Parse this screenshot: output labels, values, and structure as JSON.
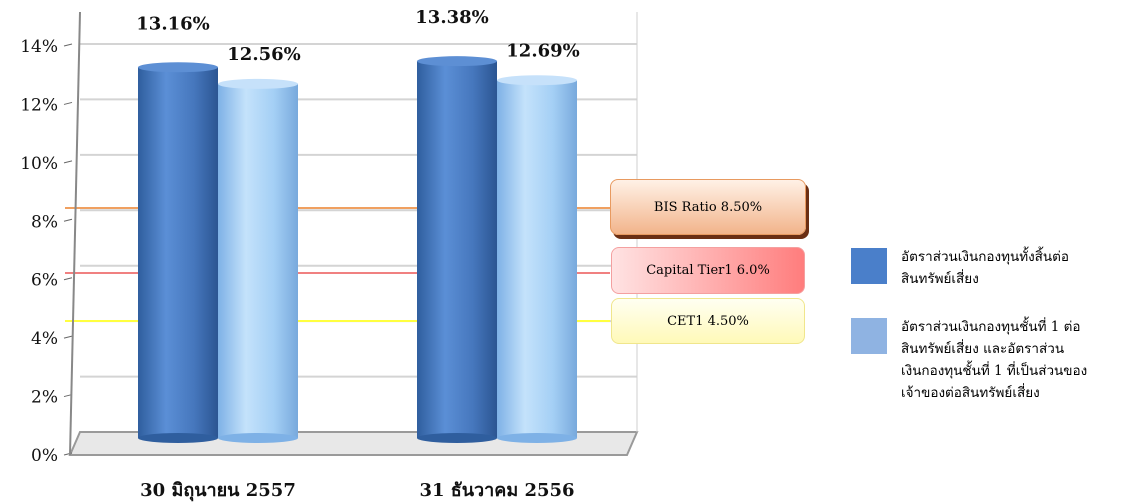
{
  "chart_data": {
    "type": "bar",
    "categories": [
      "30 มิถุนายน 2557",
      "31 ธันวาคม 2556"
    ],
    "series": [
      {
        "name": "อัตราส่วนเงินกองทุนทั้งสิ้นต่อ สินทรัพย์เสี่ยง",
        "values": [
          13.16,
          13.38
        ],
        "labels": [
          "13.16%",
          "13.38%"
        ],
        "color": "#4a7fca"
      },
      {
        "name": "อัตราส่วนเงินกองทุนชั้นที่ 1 ต่อ สินทรัพย์เสี่ยง และอัตราส่วน เงินกองทุนชั้นที่ 1 ที่เป็นส่วนของ เจ้าของต่อสินทรัพย์เสี่ยง",
        "values": [
          12.56,
          12.69
        ],
        "labels": [
          "12.56%",
          "12.69%"
        ],
        "color": "#9ccaf3"
      }
    ],
    "ylim": [
      0,
      14
    ],
    "yticks": [
      "0%",
      "2%",
      "4%",
      "6%",
      "8%",
      "10%",
      "12%",
      "14%"
    ],
    "grid": true,
    "legend_position": "right",
    "reference_lines": [
      {
        "label": "BIS Ratio 8.50%",
        "value": 8.5,
        "color": "#f0a060"
      },
      {
        "label": "Capital Tier1 6.0%",
        "value": 6.0,
        "color": "#f08080"
      },
      {
        "label": "CET1 4.50%",
        "value": 4.5,
        "color": "#ffff40"
      }
    ]
  },
  "legend": {
    "items": [
      {
        "lines": [
          "อัตราส่วนเงินกองทุนทั้งสิ้นต่อ",
          "สินทรัพย์เสี่ยง"
        ],
        "color": "#4a7fca"
      },
      {
        "lines": [
          "อัตราส่วนเงินกองทุนชั้นที่ 1 ต่อ",
          "สินทรัพย์เสี่ยง และอัตราส่วน",
          "เงินกองทุนชั้นที่ 1 ที่เป็นส่วนของ",
          "เจ้าของต่อสินทรัพย์เสี่ยง"
        ],
        "color": "#8fb3e2"
      }
    ]
  }
}
